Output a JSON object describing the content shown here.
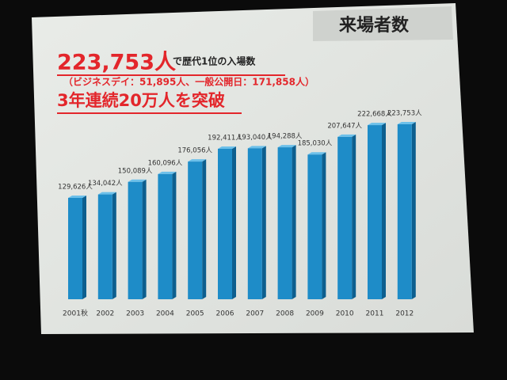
{
  "chart_data": {
    "type": "bar",
    "title": "来場者数",
    "headline": "223,753人",
    "headline_suffix": "で歴代1位の入場数",
    "note": "（ビジネスデイ：51,895人、一般公開日：171,858人）",
    "subheadline": "3年連続20万人を突破",
    "categories": [
      "2001秋",
      "2002",
      "2003",
      "2004",
      "2005",
      "2006",
      "2007",
      "2008",
      "2009",
      "2010",
      "2011",
      "2012"
    ],
    "values": [
      129626,
      134042,
      150089,
      160096,
      176056,
      192411,
      193040,
      194288,
      185030,
      207647,
      222668,
      223753
    ],
    "value_labels": [
      "129,626人",
      "134,042人",
      "150,089人",
      "160,096人",
      "176,056人",
      "192,411人",
      "193,040人",
      "194,288人",
      "185,030人",
      "207,647人",
      "222,668人",
      "223,753人"
    ],
    "color": "#1e8cc8"
  }
}
